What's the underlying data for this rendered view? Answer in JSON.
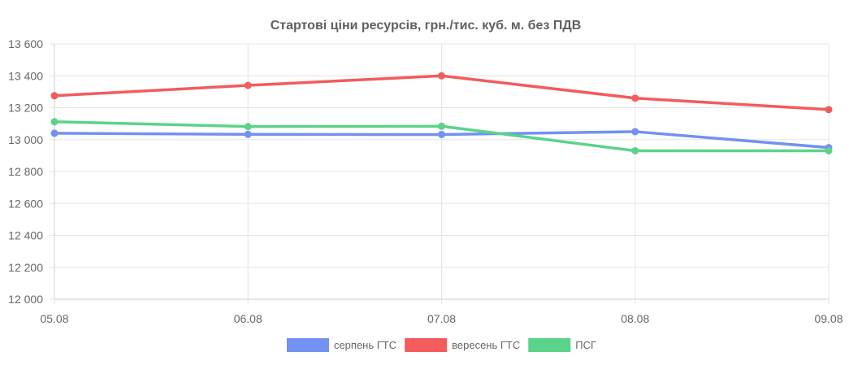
{
  "chart_data": {
    "type": "line",
    "title": "Стартові ціни ресурсів, грн./тис. куб. м. без ПДВ",
    "xlabel": "",
    "ylabel": "",
    "categories": [
      "05.08",
      "06.08",
      "07.08",
      "08.08",
      "09.08"
    ],
    "ylim": [
      12000,
      13600
    ],
    "yticks": [
      12000,
      12200,
      12400,
      12600,
      12800,
      13000,
      13200,
      13400,
      13600
    ],
    "ytick_labels": [
      "12 000",
      "12 200",
      "12 400",
      "12 600",
      "12 800",
      "13 000",
      "13 200",
      "13 400",
      "13 600"
    ],
    "grid": true,
    "legend_position": "bottom",
    "series": [
      {
        "name": "серпень ГТС",
        "color": "#7391f0",
        "values": [
          13040,
          13033,
          13032,
          13050,
          12950
        ]
      },
      {
        "name": "вересень ГТС",
        "color": "#f25c5c",
        "values": [
          13275,
          13340,
          13400,
          13260,
          13188
        ]
      },
      {
        "name": "ПСГ",
        "color": "#5bd38a",
        "values": [
          13112,
          13082,
          13084,
          12930,
          12930
        ]
      }
    ]
  }
}
